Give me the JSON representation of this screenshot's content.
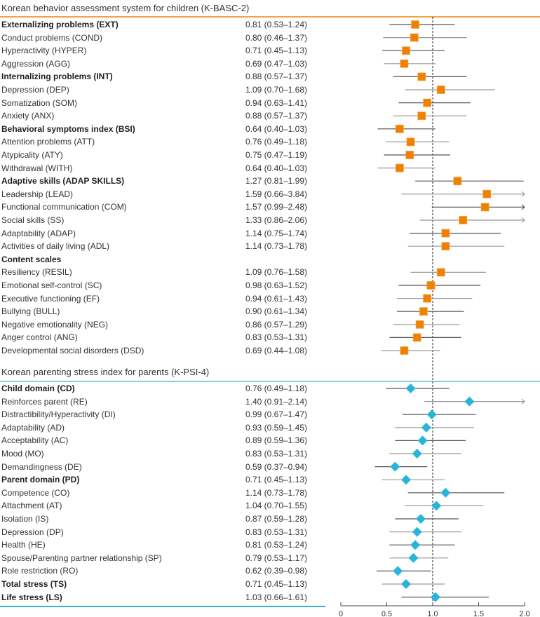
{
  "chart_data": {
    "type": "forest",
    "title": "",
    "xlabel": "",
    "xlim": [
      0,
      2.0
    ],
    "xticks": [
      "0",
      "0.5",
      "1.0",
      "1.5",
      "2.0"
    ],
    "xtick_values": [
      0,
      0.5,
      1.0,
      1.5,
      2.0
    ],
    "reference_line": 1.0,
    "sections": [
      {
        "name": "Korean behavior assessment system for children (K-BASC-2)",
        "marker": "square",
        "color": "#f08000",
        "rule_color": "#f5a04a",
        "rows": [
          {
            "label": "Externalizing problems (EXT)",
            "bold": true,
            "or": 0.81,
            "lo": 0.53,
            "hi": 1.24,
            "text": "0.81 (0.53–1.24)"
          },
          {
            "label": "Conduct problems (COND)",
            "bold": false,
            "or": 0.8,
            "lo": 0.46,
            "hi": 1.37,
            "text": "0.80 (0.46–1.37)"
          },
          {
            "label": "Hyperactivity (HYPER)",
            "bold": false,
            "or": 0.71,
            "lo": 0.45,
            "hi": 1.13,
            "text": "0.71 (0.45–1.13)"
          },
          {
            "label": "Aggression (AGG)",
            "bold": false,
            "or": 0.69,
            "lo": 0.47,
            "hi": 1.03,
            "text": "0.69 (0.47–1.03)"
          },
          {
            "label": "Internalizing problems (INT)",
            "bold": true,
            "or": 0.88,
            "lo": 0.57,
            "hi": 1.37,
            "text": "0.88 (0.57–1.37)"
          },
          {
            "label": "Depression (DEP)",
            "bold": false,
            "or": 1.09,
            "lo": 0.7,
            "hi": 1.68,
            "text": "1.09 (0.70–1.68)"
          },
          {
            "label": "Somatization (SOM)",
            "bold": false,
            "or": 0.94,
            "lo": 0.63,
            "hi": 1.41,
            "text": "0.94 (0.63–1.41)"
          },
          {
            "label": "Anxiety (ANX)",
            "bold": false,
            "or": 0.88,
            "lo": 0.57,
            "hi": 1.37,
            "text": "0.88 (0.57–1.37)"
          },
          {
            "label": "Behavioral symptoms index (BSI)",
            "bold": true,
            "or": 0.64,
            "lo": 0.4,
            "hi": 1.03,
            "text": "0.64 (0.40–1.03)"
          },
          {
            "label": "Attention problems (ATT)",
            "bold": false,
            "or": 0.76,
            "lo": 0.49,
            "hi": 1.18,
            "text": "0.76 (0.49–1.18)"
          },
          {
            "label": "Atypicality (ATY)",
            "bold": false,
            "or": 0.75,
            "lo": 0.47,
            "hi": 1.19,
            "text": "0.75 (0.47–1.19)"
          },
          {
            "label": "Withdrawal (WITH)",
            "bold": false,
            "or": 0.64,
            "lo": 0.4,
            "hi": 1.03,
            "text": "0.64 (0.40–1.03)"
          },
          {
            "label": "Adaptive skills (ADAP SKILLS)",
            "bold": true,
            "or": 1.27,
            "lo": 0.81,
            "hi": 1.99,
            "text": "1.27 (0.81–1.99)"
          },
          {
            "label": "Leadership (LEAD)",
            "bold": false,
            "or": 1.59,
            "lo": 0.66,
            "hi": 3.84,
            "text": "1.59 (0.66–3.84)"
          },
          {
            "label": "Functional communication (COM)",
            "bold": false,
            "or": 1.57,
            "lo": 0.99,
            "hi": 2.48,
            "text": "1.57 (0.99–2.48)"
          },
          {
            "label": "Social skills (SS)",
            "bold": false,
            "or": 1.33,
            "lo": 0.86,
            "hi": 2.06,
            "text": "1.33 (0.86–2.06)"
          },
          {
            "label": "Adaptability (ADAP)",
            "bold": false,
            "or": 1.14,
            "lo": 0.75,
            "hi": 1.74,
            "text": "1.14 (0.75–1.74)"
          },
          {
            "label": "Activities of daily living (ADL)",
            "bold": false,
            "or": 1.14,
            "lo": 0.73,
            "hi": 1.78,
            "text": "1.14 (0.73–1.78)"
          },
          {
            "label": "Content scales",
            "bold": true,
            "or": null,
            "lo": null,
            "hi": null,
            "text": ""
          },
          {
            "label": "Resiliency (RESIL)",
            "bold": false,
            "or": 1.09,
            "lo": 0.76,
            "hi": 1.58,
            "text": "1.09 (0.76–1.58)"
          },
          {
            "label": "Emotional self-control (SC)",
            "bold": false,
            "or": 0.98,
            "lo": 0.63,
            "hi": 1.52,
            "text": "0.98 (0.63–1.52)"
          },
          {
            "label": "Executive functioning (EF)",
            "bold": false,
            "or": 0.94,
            "lo": 0.61,
            "hi": 1.43,
            "text": "0.94 (0.61–1.43)"
          },
          {
            "label": "Bullying (BULL)",
            "bold": false,
            "or": 0.9,
            "lo": 0.61,
            "hi": 1.34,
            "text": "0.90 (0.61–1.34)"
          },
          {
            "label": "Negative emotionality (NEG)",
            "bold": false,
            "or": 0.86,
            "lo": 0.57,
            "hi": 1.29,
            "text": "0.86 (0.57–1.29)"
          },
          {
            "label": "Anger control (ANG)",
            "bold": false,
            "or": 0.83,
            "lo": 0.53,
            "hi": 1.31,
            "text": "0.83 (0.53–1.31)"
          },
          {
            "label": "Developmental social disorders (DSD)",
            "bold": false,
            "or": 0.69,
            "lo": 0.44,
            "hi": 1.08,
            "text": "0.69 (0.44–1.08)"
          }
        ]
      },
      {
        "name": "Korean parenting stress index for parents (K-PSI-4)",
        "marker": "diamond",
        "color": "#29b5d8",
        "rule_color": "#7fd0e6",
        "rows": [
          {
            "label": "Child domain (CD)",
            "bold": true,
            "or": 0.76,
            "lo": 0.49,
            "hi": 1.18,
            "text": "0.76 (0.49–1.18)"
          },
          {
            "label": "Reinforces parent (RE)",
            "bold": false,
            "or": 1.4,
            "lo": 0.91,
            "hi": 2.14,
            "text": "1.40 (0.91–2.14)"
          },
          {
            "label": "Distractibility/Hyperactivity (DI)",
            "bold": false,
            "or": 0.99,
            "lo": 0.67,
            "hi": 1.47,
            "text": "0.99 (0.67–1.47)"
          },
          {
            "label": "Adaptability (AD)",
            "bold": false,
            "or": 0.93,
            "lo": 0.59,
            "hi": 1.45,
            "text": "0.93 (0.59–1.45)"
          },
          {
            "label": "Acceptability (AC)",
            "bold": false,
            "or": 0.89,
            "lo": 0.59,
            "hi": 1.36,
            "text": "0.89 (0.59–1.36)"
          },
          {
            "label": "Mood (MO)",
            "bold": false,
            "or": 0.83,
            "lo": 0.53,
            "hi": 1.31,
            "text": "0.83 (0.53–1.31)"
          },
          {
            "label": "Demandingness (DE)",
            "bold": false,
            "or": 0.59,
            "lo": 0.37,
            "hi": 0.94,
            "text": "0.59 (0.37–0.94)"
          },
          {
            "label": "Parent domain (PD)",
            "bold": true,
            "or": 0.71,
            "lo": 0.45,
            "hi": 1.13,
            "text": "0.71 (0.45–1.13)"
          },
          {
            "label": "Competence (CO)",
            "bold": false,
            "or": 1.14,
            "lo": 0.73,
            "hi": 1.78,
            "text": "1.14 (0.73–1.78)"
          },
          {
            "label": "Attachment (AT)",
            "bold": false,
            "or": 1.04,
            "lo": 0.7,
            "hi": 1.55,
            "text": "1.04 (0.70–1.55)"
          },
          {
            "label": "Isolation (IS)",
            "bold": false,
            "or": 0.87,
            "lo": 0.59,
            "hi": 1.28,
            "text": "0.87 (0.59–1.28)"
          },
          {
            "label": "Depression (DP)",
            "bold": false,
            "or": 0.83,
            "lo": 0.53,
            "hi": 1.31,
            "text": "0.83 (0.53–1.31)"
          },
          {
            "label": "Health (HE)",
            "bold": false,
            "or": 0.81,
            "lo": 0.53,
            "hi": 1.24,
            "text": "0.81 (0.53–1.24)"
          },
          {
            "label": "Spouse/Parenting partner relationship (SP)",
            "bold": false,
            "or": 0.79,
            "lo": 0.53,
            "hi": 1.17,
            "text": "0.79 (0.53–1.17)"
          },
          {
            "label": "Role restriction (RO)",
            "bold": false,
            "or": 0.62,
            "lo": 0.39,
            "hi": 0.98,
            "text": "0.62 (0.39–0.98)"
          },
          {
            "label": "Total stress (TS)",
            "bold": true,
            "or": 0.71,
            "lo": 0.45,
            "hi": 1.13,
            "text": "0.71 (0.45–1.13)"
          },
          {
            "label": "Life stress (LS)",
            "bold": true,
            "or": 1.03,
            "lo": 0.66,
            "hi": 1.61,
            "text": "1.03 (0.66–1.61)"
          }
        ]
      }
    ]
  }
}
